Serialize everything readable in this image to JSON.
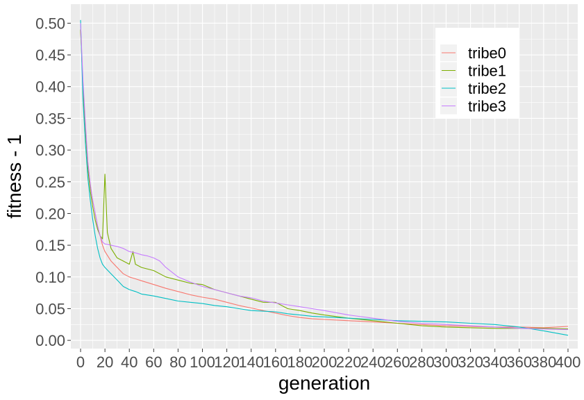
{
  "chart_data": {
    "type": "line",
    "xlabel": "generation",
    "ylabel": "fitness - 1",
    "xlim": [
      -8,
      408
    ],
    "ylim": [
      -0.013,
      0.53
    ],
    "xticks": [
      0,
      20,
      40,
      60,
      80,
      100,
      120,
      140,
      160,
      180,
      200,
      220,
      240,
      260,
      280,
      300,
      320,
      340,
      360,
      380,
      400
    ],
    "xtick_labels": [
      "0",
      "20",
      "40",
      "60",
      "80",
      "100",
      "120",
      "140",
      "160",
      "180",
      "200",
      "220",
      "240",
      "260",
      "280",
      "300",
      "320",
      "340",
      "360",
      "380",
      "400"
    ],
    "yticks": [
      0,
      0.05,
      0.1,
      0.15,
      0.2,
      0.25,
      0.3,
      0.35,
      0.4,
      0.45,
      0.5
    ],
    "ytick_labels": [
      "0.00",
      "0.05",
      "0.10",
      "0.15",
      "0.20",
      "0.25",
      "0.30",
      "0.35",
      "0.40",
      "0.45",
      "0.50"
    ],
    "grid": true,
    "legend_position": "top-right",
    "series": [
      {
        "name": "tribe0",
        "color": "#F8766D",
        "points": [
          [
            0,
            0.49
          ],
          [
            2,
            0.4
          ],
          [
            4,
            0.33
          ],
          [
            6,
            0.28
          ],
          [
            8,
            0.245
          ],
          [
            10,
            0.22
          ],
          [
            12,
            0.2
          ],
          [
            14,
            0.18
          ],
          [
            16,
            0.165
          ],
          [
            18,
            0.15
          ],
          [
            20,
            0.14
          ],
          [
            25,
            0.125
          ],
          [
            30,
            0.115
          ],
          [
            35,
            0.105
          ],
          [
            40,
            0.1
          ],
          [
            45,
            0.097
          ],
          [
            50,
            0.094
          ],
          [
            60,
            0.088
          ],
          [
            70,
            0.082
          ],
          [
            80,
            0.077
          ],
          [
            90,
            0.072
          ],
          [
            100,
            0.068
          ],
          [
            110,
            0.065
          ],
          [
            120,
            0.06
          ],
          [
            130,
            0.055
          ],
          [
            140,
            0.051
          ],
          [
            150,
            0.047
          ],
          [
            160,
            0.043
          ],
          [
            170,
            0.039
          ],
          [
            180,
            0.036
          ],
          [
            190,
            0.034
          ],
          [
            200,
            0.033
          ],
          [
            220,
            0.031
          ],
          [
            240,
            0.029
          ],
          [
            260,
            0.027
          ],
          [
            280,
            0.025
          ],
          [
            300,
            0.023
          ],
          [
            320,
            0.022
          ],
          [
            340,
            0.021
          ],
          [
            360,
            0.021
          ],
          [
            380,
            0.02
          ],
          [
            400,
            0.022
          ]
        ]
      },
      {
        "name": "tribe1",
        "color": "#7CAE00",
        "points": [
          [
            0,
            0.49
          ],
          [
            2,
            0.4
          ],
          [
            4,
            0.33
          ],
          [
            6,
            0.27
          ],
          [
            8,
            0.235
          ],
          [
            10,
            0.21
          ],
          [
            12,
            0.19
          ],
          [
            14,
            0.175
          ],
          [
            16,
            0.165
          ],
          [
            18,
            0.16
          ],
          [
            20,
            0.262
          ],
          [
            22,
            0.17
          ],
          [
            25,
            0.145
          ],
          [
            30,
            0.13
          ],
          [
            35,
            0.125
          ],
          [
            40,
            0.12
          ],
          [
            43,
            0.14
          ],
          [
            45,
            0.12
          ],
          [
            50,
            0.115
          ],
          [
            60,
            0.11
          ],
          [
            70,
            0.1
          ],
          [
            80,
            0.095
          ],
          [
            90,
            0.09
          ],
          [
            100,
            0.088
          ],
          [
            110,
            0.08
          ],
          [
            120,
            0.075
          ],
          [
            130,
            0.07
          ],
          [
            140,
            0.065
          ],
          [
            150,
            0.06
          ],
          [
            160,
            0.06
          ],
          [
            170,
            0.05
          ],
          [
            180,
            0.047
          ],
          [
            190,
            0.043
          ],
          [
            200,
            0.04
          ],
          [
            220,
            0.035
          ],
          [
            240,
            0.031
          ],
          [
            260,
            0.027
          ],
          [
            280,
            0.023
          ],
          [
            300,
            0.021
          ],
          [
            320,
            0.02
          ],
          [
            340,
            0.019
          ],
          [
            360,
            0.019
          ],
          [
            380,
            0.019
          ],
          [
            400,
            0.018
          ]
        ]
      },
      {
        "name": "tribe2",
        "color": "#00BFC4",
        "points": [
          [
            0,
            0.505
          ],
          [
            2,
            0.38
          ],
          [
            4,
            0.31
          ],
          [
            6,
            0.255
          ],
          [
            8,
            0.22
          ],
          [
            10,
            0.19
          ],
          [
            12,
            0.165
          ],
          [
            14,
            0.145
          ],
          [
            16,
            0.13
          ],
          [
            18,
            0.12
          ],
          [
            20,
            0.115
          ],
          [
            25,
            0.105
          ],
          [
            30,
            0.095
          ],
          [
            35,
            0.085
          ],
          [
            40,
            0.08
          ],
          [
            45,
            0.077
          ],
          [
            50,
            0.073
          ],
          [
            60,
            0.07
          ],
          [
            70,
            0.066
          ],
          [
            80,
            0.062
          ],
          [
            90,
            0.06
          ],
          [
            100,
            0.058
          ],
          [
            110,
            0.055
          ],
          [
            120,
            0.053
          ],
          [
            130,
            0.05
          ],
          [
            140,
            0.047
          ],
          [
            150,
            0.046
          ],
          [
            160,
            0.045
          ],
          [
            170,
            0.042
          ],
          [
            180,
            0.04
          ],
          [
            190,
            0.038
          ],
          [
            200,
            0.037
          ],
          [
            220,
            0.035
          ],
          [
            240,
            0.033
          ],
          [
            260,
            0.031
          ],
          [
            280,
            0.03
          ],
          [
            300,
            0.029
          ],
          [
            320,
            0.027
          ],
          [
            340,
            0.025
          ],
          [
            360,
            0.021
          ],
          [
            380,
            0.015
          ],
          [
            400,
            0.008
          ]
        ]
      },
      {
        "name": "tribe3",
        "color": "#C77CFF",
        "points": [
          [
            0,
            0.5
          ],
          [
            2,
            0.41
          ],
          [
            4,
            0.34
          ],
          [
            6,
            0.28
          ],
          [
            8,
            0.245
          ],
          [
            10,
            0.22
          ],
          [
            12,
            0.2
          ],
          [
            14,
            0.18
          ],
          [
            16,
            0.165
          ],
          [
            18,
            0.155
          ],
          [
            20,
            0.152
          ],
          [
            25,
            0.15
          ],
          [
            30,
            0.148
          ],
          [
            35,
            0.145
          ],
          [
            40,
            0.14
          ],
          [
            45,
            0.138
          ],
          [
            50,
            0.135
          ],
          [
            55,
            0.133
          ],
          [
            60,
            0.13
          ],
          [
            65,
            0.125
          ],
          [
            70,
            0.115
          ],
          [
            80,
            0.1
          ],
          [
            90,
            0.092
          ],
          [
            100,
            0.085
          ],
          [
            110,
            0.08
          ],
          [
            120,
            0.075
          ],
          [
            130,
            0.07
          ],
          [
            140,
            0.067
          ],
          [
            150,
            0.062
          ],
          [
            160,
            0.059
          ],
          [
            170,
            0.056
          ],
          [
            180,
            0.053
          ],
          [
            190,
            0.05
          ],
          [
            200,
            0.047
          ],
          [
            220,
            0.04
          ],
          [
            240,
            0.035
          ],
          [
            260,
            0.03
          ],
          [
            280,
            0.027
          ],
          [
            300,
            0.025
          ],
          [
            320,
            0.023
          ],
          [
            340,
            0.021
          ],
          [
            360,
            0.019
          ],
          [
            380,
            0.018
          ],
          [
            400,
            0.017
          ]
        ]
      }
    ]
  }
}
